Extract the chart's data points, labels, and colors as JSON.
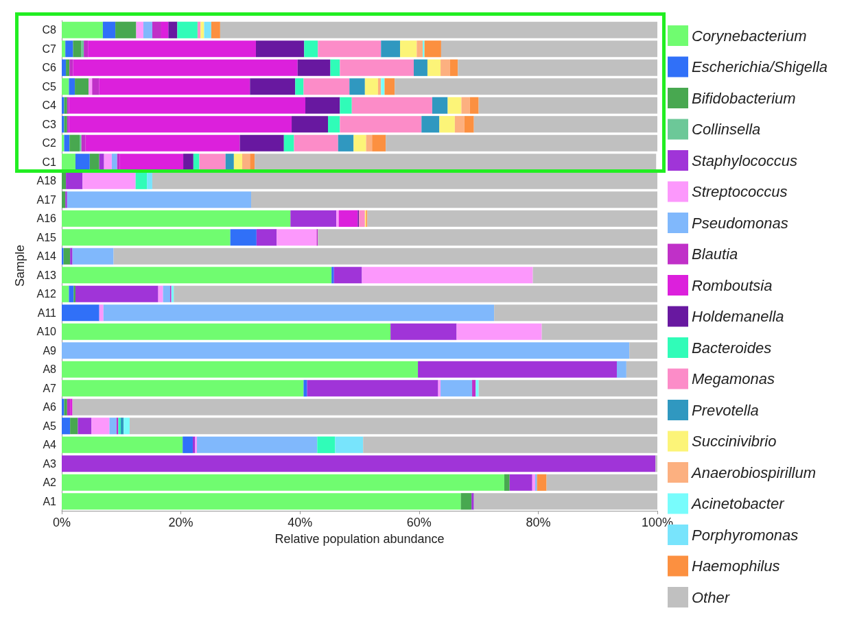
{
  "chart_data": {
    "type": "bar",
    "orientation": "horizontal",
    "stacked": true,
    "xlabel": "Relative population abundance",
    "ylabel": "Sample",
    "categories": [
      "C8",
      "C7",
      "C6",
      "C5",
      "C4",
      "C3",
      "C2",
      "C1",
      "A18",
      "A17",
      "A16",
      "A15",
      "A14",
      "A13",
      "A12",
      "A11",
      "A10",
      "A9",
      "A8",
      "A7",
      "A6",
      "A5",
      "A4",
      "A3",
      "A2",
      "A1"
    ],
    "xlim": [
      0,
      100
    ],
    "xticks": [
      {
        "value": 0,
        "label": "0%"
      },
      {
        "value": 20,
        "label": "20%"
      },
      {
        "value": 40,
        "label": "40%"
      },
      {
        "value": 60,
        "label": "60%"
      },
      {
        "value": 80,
        "label": "80%"
      },
      {
        "value": 100,
        "label": "100%"
      }
    ],
    "grid": false,
    "legend": "right",
    "series": [
      {
        "name": "Corynebacterium",
        "color": "#70fc70",
        "values": [
          6.9,
          0.6,
          null,
          1.2,
          null,
          null,
          0.4,
          2.3,
          null,
          null,
          38.4,
          28.3,
          null,
          45.3,
          1.2,
          null,
          55.2,
          null,
          59.8,
          40.6,
          null,
          null,
          20.3,
          null,
          74.3,
          67.0
        ]
      },
      {
        "name": "Escherichia/Shigella",
        "color": "#3070f8",
        "values": [
          2.1,
          1.3,
          0.7,
          1.0,
          0.4,
          0.4,
          0.9,
          2.4,
          null,
          null,
          null,
          4.4,
          0.3,
          0.4,
          0.8,
          6.3,
          null,
          null,
          null,
          0.6,
          0.4,
          1.4,
          1.7,
          null,
          null,
          null
        ]
      },
      {
        "name": "Bifidobacterium",
        "color": "#48a850",
        "values": [
          3.5,
          1.4,
          0.6,
          2.3,
          0.5,
          0.5,
          1.7,
          1.6,
          0.7,
          0.6,
          null,
          null,
          1.1,
          null,
          0.3,
          null,
          null,
          null,
          null,
          null,
          0.5,
          1.3,
          null,
          null,
          0.9,
          1.8
        ]
      },
      {
        "name": "Collinsella",
        "color": "#6cc898",
        "values": [
          null,
          0.4,
          null,
          null,
          null,
          null,
          0.3,
          null,
          null,
          null,
          null,
          null,
          null,
          null,
          null,
          null,
          null,
          null,
          null,
          null,
          null,
          null,
          null,
          null,
          null,
          null
        ]
      },
      {
        "name": "Staphylococcus",
        "color": "#a034d8",
        "values": [
          null,
          null,
          null,
          null,
          null,
          null,
          null,
          0.8,
          2.8,
          0.3,
          7.7,
          3.4,
          0.4,
          4.7,
          13.9,
          null,
          11.1,
          null,
          33.4,
          22.0,
          null,
          2.3,
          0.4,
          99.7,
          3.8,
          0.4
        ]
      },
      {
        "name": "Streptococcus",
        "color": "#fc98fc",
        "values": [
          1.2,
          null,
          null,
          0.6,
          null,
          null,
          null,
          1.3,
          8.9,
          null,
          0.4,
          6.7,
          null,
          28.7,
          0.8,
          0.7,
          14.3,
          null,
          null,
          0.4,
          null,
          3.0,
          0.3,
          null,
          0.5,
          null
        ]
      },
      {
        "name": "Pseudomonas",
        "color": "#80b8fc",
        "values": [
          1.5,
          null,
          null,
          null,
          null,
          null,
          null,
          0.9,
          null,
          30.9,
          null,
          null,
          6.9,
          null,
          1.2,
          65.6,
          null,
          95.3,
          1.6,
          5.3,
          null,
          1.2,
          20.2,
          null,
          0.3,
          null
        ]
      },
      {
        "name": "Blautia",
        "color": "#c030c8",
        "values": [
          1.5,
          0.7,
          0.6,
          1.2,
          0.3,
          0.3,
          0.7,
          0.4,
          null,
          null,
          null,
          0.2,
          null,
          null,
          0.2,
          null,
          null,
          null,
          null,
          0.6,
          0.5,
          0.3,
          null,
          null,
          null,
          null
        ]
      },
      {
        "name": "Romboutsia",
        "color": "#dc20dc",
        "values": [
          1.2,
          28.2,
          37.7,
          25.3,
          39.7,
          37.4,
          25.9,
          10.7,
          null,
          null,
          3.2,
          null,
          null,
          null,
          null,
          null,
          null,
          null,
          null,
          null,
          0.4,
          null,
          null,
          null,
          null,
          null
        ]
      },
      {
        "name": "Holdemanella",
        "color": "#6818a0",
        "values": [
          1.5,
          8.1,
          5.5,
          7.6,
          5.8,
          6.1,
          7.4,
          1.7,
          null,
          null,
          0.2,
          null,
          null,
          null,
          null,
          null,
          null,
          null,
          null,
          null,
          null,
          null,
          null,
          null,
          null,
          null
        ]
      },
      {
        "name": "Bacteroides",
        "color": "#30fcb8",
        "values": [
          3.4,
          2.3,
          1.6,
          1.4,
          2.0,
          2.0,
          1.7,
          1.0,
          1.9,
          null,
          null,
          null,
          null,
          null,
          null,
          null,
          null,
          null,
          null,
          null,
          null,
          0.4,
          3.0,
          null,
          null,
          null
        ]
      },
      {
        "name": "Megamonas",
        "color": "#fc8cc8",
        "values": [
          0.5,
          10.6,
          12.4,
          7.7,
          13.5,
          13.7,
          7.4,
          4.4,
          null,
          null,
          1.0,
          null,
          null,
          null,
          null,
          null,
          null,
          null,
          null,
          null,
          null,
          null,
          null,
          null,
          null,
          null
        ]
      },
      {
        "name": "Prevotella",
        "color": "#3098c0",
        "values": [
          null,
          3.2,
          2.3,
          2.6,
          2.6,
          3.0,
          2.6,
          1.4,
          null,
          null,
          null,
          null,
          null,
          null,
          null,
          null,
          null,
          null,
          null,
          null,
          null,
          0.5,
          null,
          null,
          null,
          null
        ]
      },
      {
        "name": "Succinivibrio",
        "color": "#fcf478",
        "values": [
          0.6,
          2.8,
          2.2,
          2.2,
          2.3,
          2.6,
          2.1,
          1.4,
          null,
          null,
          0.2,
          null,
          null,
          null,
          null,
          null,
          null,
          null,
          null,
          null,
          null,
          null,
          null,
          null,
          null,
          null
        ]
      },
      {
        "name": "Anaerobiospirillum",
        "color": "#fcb080",
        "values": [
          null,
          1.0,
          1.6,
          0.5,
          1.4,
          1.6,
          1.0,
          1.3,
          null,
          null,
          null,
          null,
          null,
          null,
          null,
          null,
          null,
          null,
          null,
          null,
          null,
          null,
          null,
          null,
          null,
          null
        ]
      },
      {
        "name": "Acinetobacter",
        "color": "#78fcfc",
        "values": [
          null,
          0.3,
          null,
          0.6,
          null,
          null,
          null,
          null,
          null,
          null,
          null,
          null,
          null,
          null,
          0.4,
          null,
          null,
          null,
          null,
          0.5,
          null,
          1.0,
          null,
          null,
          null,
          null
        ]
      },
      {
        "name": "Porphyromonas",
        "color": "#78e4fc",
        "values": [
          1.2,
          null,
          null,
          null,
          null,
          null,
          null,
          null,
          0.9,
          null,
          null,
          null,
          null,
          null,
          null,
          null,
          null,
          null,
          null,
          null,
          null,
          null,
          4.7,
          null,
          null,
          null
        ]
      },
      {
        "name": "Haemophilus",
        "color": "#fc9040",
        "values": [
          1.5,
          2.8,
          1.3,
          1.7,
          1.5,
          1.6,
          2.3,
          0.8,
          null,
          null,
          0.2,
          null,
          null,
          null,
          null,
          null,
          null,
          null,
          null,
          null,
          null,
          null,
          null,
          null,
          1.6,
          null
        ]
      },
      {
        "name": "Other",
        "color": "#c0c0c0",
        "values": [
          73.4,
          36.3,
          33.5,
          44.1,
          30.0,
          30.8,
          45.6,
          67.4,
          84.8,
          68.2,
          48.7,
          57.0,
          91.3,
          20.9,
          81.2,
          27.4,
          19.4,
          4.7,
          5.2,
          30.0,
          98.2,
          88.6,
          49.4,
          0.3,
          18.6,
          30.8
        ]
      }
    ]
  }
}
